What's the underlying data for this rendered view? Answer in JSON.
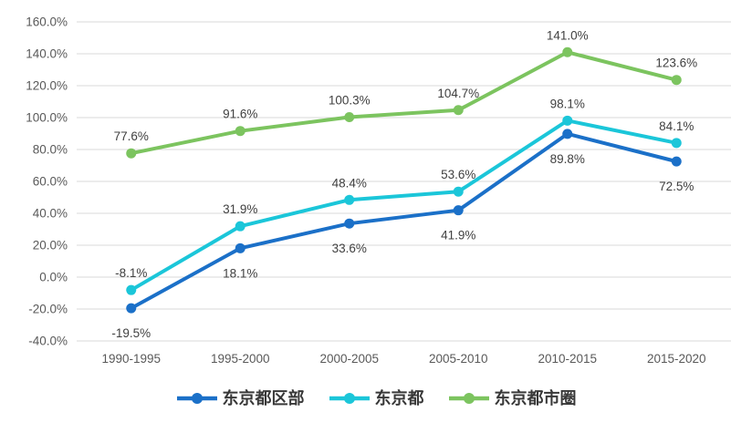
{
  "chart_data": {
    "type": "line",
    "title": "",
    "categories": [
      "1990-1995",
      "1995-2000",
      "2000-2005",
      "2005-2010",
      "2010-2015",
      "2015-2020"
    ],
    "series": [
      {
        "name": "东京都区部",
        "color": "#1B70C8",
        "values": [
          -19.5,
          18.1,
          33.6,
          41.9,
          89.8,
          72.5
        ],
        "data_label_position": "below"
      },
      {
        "name": "东京都",
        "color": "#1BC6D9",
        "values": [
          -8.1,
          31.9,
          48.4,
          53.6,
          98.1,
          84.1
        ],
        "data_label_position": "above"
      },
      {
        "name": "东京都市圈",
        "color": "#7CC45F",
        "values": [
          77.6,
          91.6,
          100.3,
          104.7,
          141.0,
          123.6
        ],
        "data_label_position": "above"
      }
    ],
    "y_axis": {
      "min": -40,
      "max": 160,
      "step": 20,
      "tick_labels": [
        "-40.0%",
        "-20.0%",
        "0.0%",
        "20.0%",
        "40.0%",
        "60.0%",
        "80.0%",
        "100.0%",
        "120.0%",
        "140.0%",
        "160.0%"
      ]
    },
    "data_labels": {
      "visible": true,
      "format": "one_decimal_percent"
    },
    "legend": {
      "position": "bottom",
      "entries": [
        "东京都区部",
        "东京都",
        "东京都市圈"
      ]
    },
    "grid": {
      "horizontal": true,
      "vertical": false,
      "color": "#D9D9D9"
    },
    "colors": {
      "background": "#FFFFFF",
      "axis_text": "#595959",
      "data_label_text": "#404040",
      "legend_text": "#383838"
    }
  }
}
